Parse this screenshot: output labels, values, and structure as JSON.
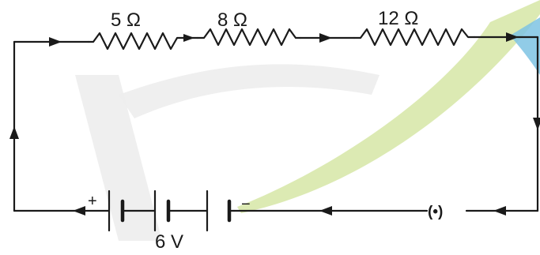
{
  "resistors": [
    {
      "label": "5 Ω"
    },
    {
      "label": "8 Ω"
    },
    {
      "label": "12 Ω"
    }
  ],
  "battery": {
    "voltage_label": "6 V",
    "positive_label": "+",
    "negative_label": "−"
  },
  "key": {
    "label": "(•)"
  },
  "colors": {
    "wire": "#1a1a1a",
    "watermark_green": "#d6e6a6",
    "watermark_blue": "#7ec3e3",
    "watermark_grey": "#ededed"
  }
}
